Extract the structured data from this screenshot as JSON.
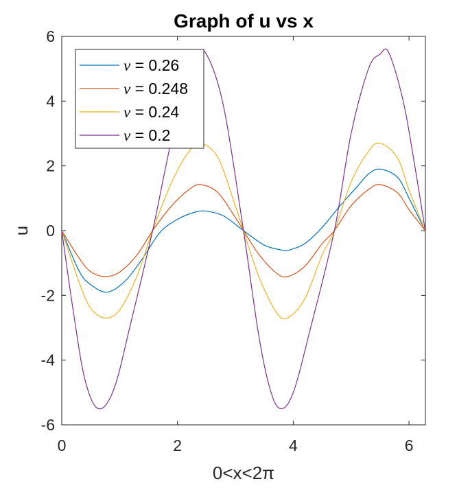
{
  "chart_data": {
    "type": "line",
    "title": "Graph of u vs x",
    "xlabel": "0<x<2π",
    "ylabel": "u",
    "xlim": [
      0,
      6.283185
    ],
    "ylim": [
      -6,
      6
    ],
    "xticks": [
      0,
      2,
      4,
      6
    ],
    "xtick_labels": [
      "0",
      "2",
      "4",
      "6"
    ],
    "yticks": [
      -6,
      -4,
      -2,
      0,
      2,
      4,
      6
    ],
    "ytick_labels": [
      "-6",
      "-4",
      "-2",
      "0",
      "2",
      "4",
      "6"
    ],
    "grid": false,
    "legend_position": "top-left",
    "legend_symbol": "ν",
    "series": [
      {
        "name": "ν = 0.26",
        "label_value": "= 0.26",
        "color": "#0072BD",
        "x": [
          0,
          0.3,
          0.5,
          0.79,
          1.1,
          1.4,
          1.7,
          2.0,
          2.3,
          2.5,
          2.8,
          3.14,
          3.5,
          3.8,
          3.93,
          4.2,
          4.5,
          4.8,
          5.1,
          5.3,
          5.5,
          5.8,
          6.0,
          6.28
        ],
        "y": [
          0,
          -1.25,
          -1.67,
          -1.9,
          -1.55,
          -0.85,
          -0.05,
          0.35,
          0.57,
          0.6,
          0.45,
          0,
          -0.45,
          -0.6,
          -0.6,
          -0.4,
          0.1,
          0.75,
          1.35,
          1.75,
          1.9,
          1.65,
          1.0,
          0
        ]
      },
      {
        "name": "ν = 0.248",
        "label_value": "= 0.248",
        "color": "#D95319",
        "x": [
          0,
          0.3,
          0.5,
          0.75,
          1.0,
          1.3,
          1.57,
          1.9,
          2.2,
          2.4,
          2.7,
          3.0,
          3.14,
          3.4,
          3.7,
          3.9,
          4.2,
          4.5,
          4.71,
          5.0,
          5.3,
          5.5,
          5.8,
          6.0,
          6.28
        ],
        "y": [
          0,
          -0.85,
          -1.27,
          -1.42,
          -1.28,
          -0.75,
          0,
          0.77,
          1.27,
          1.42,
          1.17,
          0.4,
          0,
          -0.72,
          -1.3,
          -1.42,
          -1.1,
          -0.4,
          0,
          0.77,
          1.27,
          1.42,
          1.17,
          0.65,
          0
        ]
      },
      {
        "name": "ν = 0.24",
        "label_value": "= 0.24",
        "color": "#EDB120",
        "x": [
          0,
          0.3,
          0.5,
          0.75,
          1.0,
          1.3,
          1.57,
          1.9,
          2.2,
          2.4,
          2.7,
          3.0,
          3.14,
          3.4,
          3.7,
          3.9,
          4.2,
          4.5,
          4.71,
          5.0,
          5.3,
          5.5,
          5.8,
          6.0,
          6.28
        ],
        "y": [
          0,
          -1.6,
          -2.4,
          -2.7,
          -2.45,
          -1.4,
          0,
          1.5,
          2.45,
          2.7,
          2.25,
          0.75,
          0,
          -1.4,
          -2.5,
          -2.7,
          -2.1,
          -0.75,
          0,
          1.5,
          2.45,
          2.7,
          2.25,
          1.25,
          0
        ]
      },
      {
        "name": "ν = 0.2",
        "label_value": "= 0.2",
        "color": "#7E2F8E",
        "x": [
          0,
          0.2,
          0.4,
          0.63,
          0.9,
          1.2,
          1.57,
          1.8,
          2.1,
          2.3,
          2.5,
          2.8,
          3.14,
          3.4,
          3.6,
          3.78,
          4.0,
          4.3,
          4.71,
          5.0,
          5.3,
          5.5,
          5.65,
          5.9,
          6.1,
          6.28
        ],
        "y": [
          0,
          -2.5,
          -4.6,
          -5.5,
          -4.9,
          -2.8,
          0,
          2.0,
          4.5,
          5.4,
          5.45,
          3.8,
          0,
          -3.2,
          -4.9,
          -5.5,
          -5.0,
          -3.0,
          0,
          3.0,
          5.0,
          5.45,
          5.5,
          4.0,
          2.0,
          0
        ]
      }
    ]
  }
}
